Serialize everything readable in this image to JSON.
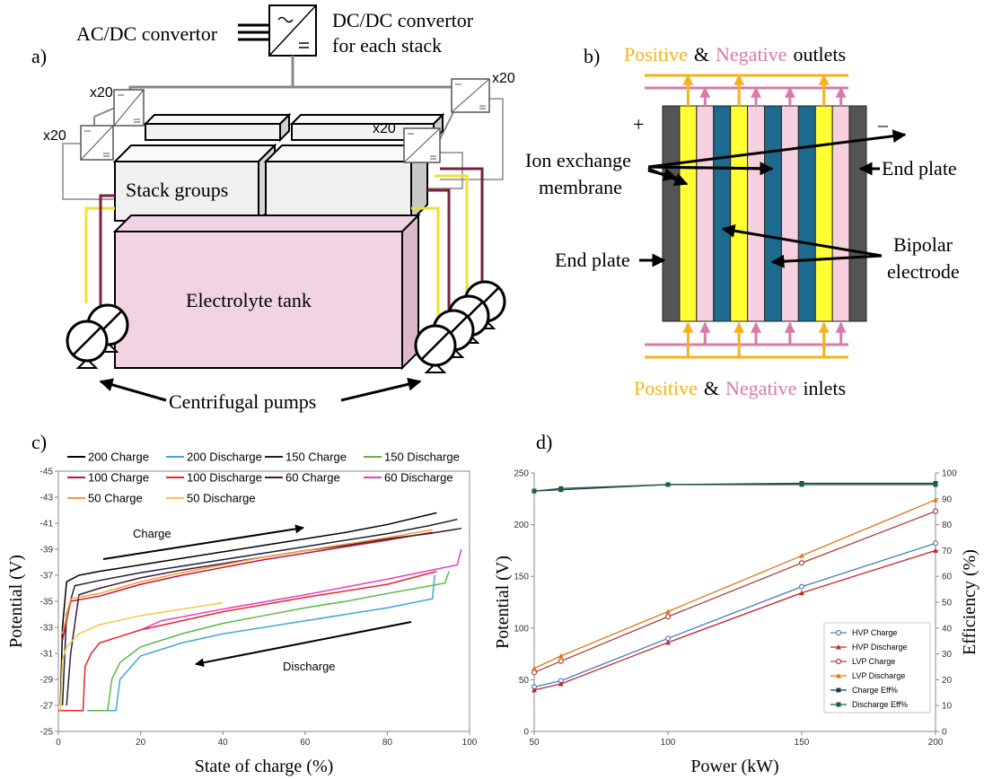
{
  "panel_a": {
    "label": "a)",
    "ac_dc": "AC/DC convertor",
    "dc_dc": [
      "DC/DC convertor",
      "for each stack"
    ],
    "multipliers": [
      "x20",
      "x20",
      "x20",
      "x20"
    ],
    "stack_groups": "Stack groups",
    "tank": "Electrolyte tank",
    "pumps": "Centrifugal pumps"
  },
  "panel_b": {
    "label": "b)",
    "outlets": [
      "Positive",
      "&",
      "Negative",
      "outlets"
    ],
    "plus": "+",
    "minus": "–",
    "membrane": [
      "Ion exchange",
      "membrane"
    ],
    "end_plate_right": "End plate",
    "end_plate_left": "End plate",
    "bipolar": [
      "Bipolar",
      "electrode"
    ],
    "inlets": [
      "Positive",
      "&",
      "Negative",
      "inlets"
    ]
  },
  "chart_data": [
    {
      "type": "line",
      "panel_label": "c)",
      "x_label": "State of charge (%)",
      "y_label": "Potential (V)",
      "xlim": [
        0,
        100
      ],
      "xticks": [
        0,
        20,
        40,
        60,
        80,
        100
      ],
      "ylim": [
        -25,
        -45
      ],
      "yticks": [
        -25,
        -27,
        -29,
        -31,
        -33,
        -35,
        -37,
        -39,
        -41,
        -43,
        -45
      ],
      "annotations": [
        "Charge",
        "Discharge"
      ],
      "series": [
        {
          "name": "200 Charge",
          "color": "#000000",
          "x": [
            0.5,
            1,
            2,
            5,
            10,
            20,
            30,
            40,
            50,
            60,
            70,
            80,
            92
          ],
          "values": [
            -27,
            -33,
            -36.5,
            -37,
            -37.3,
            -37.8,
            -38.3,
            -38.8,
            -39.3,
            -39.8,
            -40.3,
            -40.9,
            -41.8
          ]
        },
        {
          "name": "200 Discharge",
          "color": "#3fa7d6",
          "x": [
            7,
            14,
            15,
            20,
            30,
            40,
            50,
            60,
            70,
            80,
            91,
            91.5
          ],
          "values": [
            -26.6,
            -26.6,
            -29,
            -30.8,
            -31.8,
            -32.5,
            -33,
            -33.5,
            -34,
            -34.5,
            -35.2,
            -37
          ]
        },
        {
          "name": "150 Charge",
          "color": "#1a2040",
          "x": [
            1,
            2,
            4,
            10,
            20,
            30,
            40,
            50,
            60,
            70,
            80,
            90,
            97
          ],
          "values": [
            -27,
            -34,
            -36.2,
            -36.6,
            -37.2,
            -37.7,
            -38.2,
            -38.7,
            -39.2,
            -39.7,
            -40.2,
            -40.8,
            -41.3
          ]
        },
        {
          "name": "150 Discharge",
          "color": "#5cb845",
          "x": [
            8,
            12,
            13,
            15,
            20,
            30,
            40,
            50,
            60,
            70,
            80,
            94,
            95
          ],
          "values": [
            -26.6,
            -26.6,
            -29,
            -30.3,
            -31.5,
            -32.5,
            -33.3,
            -33.9,
            -34.5,
            -35,
            -35.6,
            -36.4,
            -37.3
          ]
        },
        {
          "name": "100 Charge",
          "color": "#c0143c",
          "x": [
            1,
            3,
            10,
            20,
            30,
            40,
            50,
            60,
            70,
            80,
            91
          ],
          "values": [
            -32,
            -35,
            -35.4,
            -36.3,
            -37,
            -37.6,
            -38.2,
            -38.7,
            -39.2,
            -39.7,
            -40.3
          ]
        },
        {
          "name": "100 Discharge",
          "color": "#e8242c",
          "x": [
            0,
            6,
            6.5,
            8,
            10,
            20,
            40,
            60,
            80,
            92
          ],
          "values": [
            -26.6,
            -26.6,
            -30,
            -31,
            -31.8,
            -32.8,
            -34.2,
            -35.3,
            -36.3,
            -37.3
          ]
        },
        {
          "name": "60 Charge",
          "color": "#3d1a3a",
          "x": [
            2,
            3,
            5,
            10,
            20,
            30,
            40,
            50,
            60,
            70,
            80,
            90,
            98
          ],
          "values": [
            -27,
            -31,
            -35.5,
            -36,
            -36.8,
            -37.4,
            -37.9,
            -38.4,
            -38.9,
            -39.3,
            -39.8,
            -40.2,
            -40.6
          ]
        },
        {
          "name": "60 Discharge",
          "color": "#e040c0",
          "x": [
            20,
            25,
            40,
            60,
            80,
            97,
            98
          ],
          "values": [
            -32.8,
            -33.5,
            -34.4,
            -35.5,
            -36.7,
            -37.8,
            -39
          ]
        },
        {
          "name": "50 Charge",
          "color": "#f0a030",
          "x": [
            1,
            3,
            10,
            20,
            30,
            40,
            50,
            60,
            70,
            80,
            91
          ],
          "values": [
            -32.5,
            -35.2,
            -35.6,
            -36.5,
            -37.2,
            -37.8,
            -38.4,
            -38.9,
            -39.4,
            -39.9,
            -40.5
          ]
        },
        {
          "name": "50 Discharge",
          "color": "#f5c842",
          "x": [
            0.5,
            1,
            2,
            5,
            10,
            20,
            30,
            40
          ],
          "values": [
            -26.6,
            -30.5,
            -31.5,
            -32.5,
            -33.2,
            -33.9,
            -34.4,
            -34.9
          ]
        }
      ]
    },
    {
      "type": "line",
      "panel_label": "d)",
      "x_label": "Power (kW)",
      "y_label": "Potential (V)",
      "y2_label": "Efficiency (%)",
      "xlim": [
        50,
        200
      ],
      "xticks": [
        50,
        100,
        150,
        200
      ],
      "ylim": [
        0,
        250
      ],
      "yticks": [
        0,
        50,
        100,
        150,
        200,
        250
      ],
      "y2lim": [
        0,
        100
      ],
      "y2ticks": [
        0,
        10,
        20,
        30,
        40,
        50,
        60,
        70,
        80,
        90,
        100
      ],
      "series": [
        {
          "name": "HVP Charge",
          "color": "#4a7ebb",
          "marker": "circle",
          "x": [
            50,
            60,
            100,
            150,
            200
          ],
          "values": [
            43,
            49,
            90,
            140,
            182
          ]
        },
        {
          "name": "HVP Discharge",
          "color": "#c0282c",
          "marker": "triangle",
          "x": [
            50,
            60,
            100,
            150,
            200
          ],
          "values": [
            40,
            46,
            86,
            134,
            175
          ]
        },
        {
          "name": "LVP Charge",
          "color": "#b0403c",
          "marker": "circle",
          "x": [
            50,
            60,
            100,
            150,
            200
          ],
          "values": [
            57,
            68,
            111,
            163,
            213
          ]
        },
        {
          "name": "LVP Discharge",
          "color": "#e07818",
          "marker": "triangle",
          "x": [
            50,
            60,
            100,
            150,
            200
          ],
          "values": [
            61,
            73,
            116,
            170,
            224
          ]
        },
        {
          "name": "Charge Eff%",
          "color": "#1f3864",
          "marker": "square",
          "axis": "y2",
          "x": [
            50,
            60,
            100,
            150,
            200
          ],
          "values": [
            93,
            93.5,
            95.5,
            96,
            96
          ]
        },
        {
          "name": "Discharge Eff%",
          "color": "#1e5e3a",
          "marker": "square",
          "axis": "y2",
          "x": [
            50,
            60,
            100,
            150,
            200
          ],
          "values": [
            93,
            94,
            95.5,
            95.5,
            95.5
          ]
        }
      ]
    }
  ]
}
